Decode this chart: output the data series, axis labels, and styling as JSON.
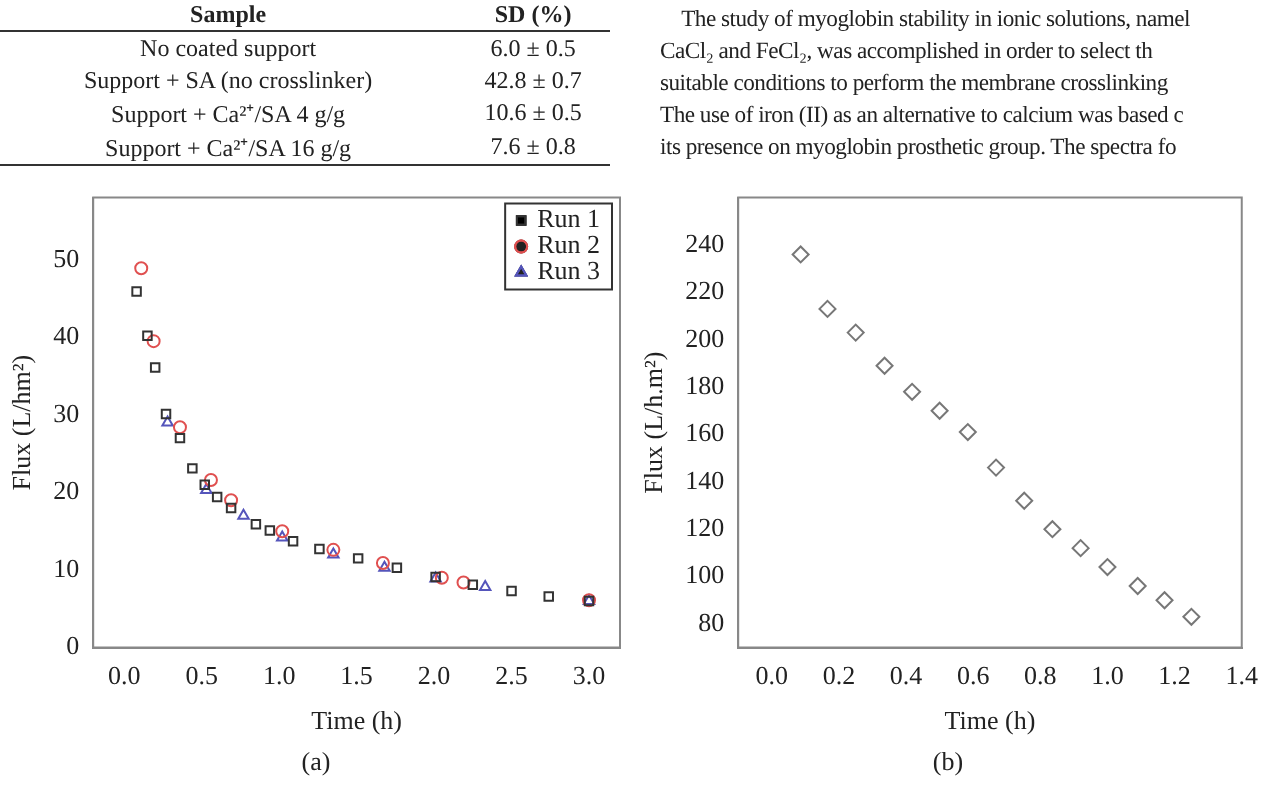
{
  "chart_data": [
    {
      "type": "other",
      "xlabel": "Sample",
      "ylabel": "SD (%)",
      "categories": [
        "No coated support",
        "Support + SA (no crosslinker)",
        "Support + Ca²⁺/SA 4 g/g",
        "Support + Ca²⁺/SA 16 g/g"
      ],
      "value_labels": [
        "6.0 ± 0.5",
        "42.8 ± 0.7",
        "10.6 ± 0.5",
        "7.6 ± 0.8"
      ],
      "annotations": [
        "The study of myoglobin stability in ionic solutions, namel",
        "CaCl₂ and FeCl₂, was accomplished in order to select th",
        "suitable conditions to perform the membrane crosslinking",
        "The use of iron (II) as an alternative to calcium was based c",
        "its presence on myoglobin prosthetic group. The spectra fo"
      ]
    },
    {
      "type": "scatter",
      "xlabel": "Time (h)",
      "ylabel": "Flux (L/hm²)",
      "annotations": [
        "(a)"
      ],
      "xlim": [
        -0.2,
        3.2
      ],
      "xticks": [
        {
          "value": 0,
          "label": "0.0"
        },
        {
          "value": 0.5,
          "label": "0.5"
        },
        {
          "value": 1,
          "label": "1.0"
        },
        {
          "value": 1.5,
          "label": "1.5"
        },
        {
          "value": 2,
          "label": "2.0"
        },
        {
          "value": 2.5,
          "label": "2.5"
        },
        {
          "value": 3,
          "label": "3.0"
        }
      ],
      "ylim": [
        0,
        58
      ],
      "yticks": [
        0,
        10,
        20,
        30,
        40,
        50
      ],
      "grid": false,
      "legend": "top right",
      "series": [
        {
          "name": "Run 1",
          "color": "#333333",
          "marker": "square",
          "x": [
            0.08,
            0.15,
            0.2,
            0.27,
            0.36,
            0.44,
            0.52,
            0.6,
            0.69,
            0.85,
            0.94,
            1.09,
            1.26,
            1.51,
            1.76,
            2.01,
            2.25,
            2.5,
            2.74,
            3.0
          ],
          "values": [
            45.9,
            40.2,
            36.1,
            30.1,
            27.0,
            23.1,
            21.0,
            19.4,
            18.0,
            15.9,
            15.1,
            13.7,
            12.7,
            11.5,
            10.3,
            9.1,
            8.1,
            7.3,
            6.6,
            6.0
          ]
        },
        {
          "name": "Run 2",
          "color": "#e05050",
          "marker": "circle",
          "x": [
            0.11,
            0.19,
            0.36,
            0.56,
            0.69,
            1.02,
            1.35,
            1.67,
            2.05,
            2.19,
            3.0
          ],
          "values": [
            48.9,
            39.5,
            28.4,
            21.6,
            19.0,
            15.0,
            12.6,
            10.9,
            9.0,
            8.4,
            6.1
          ]
        },
        {
          "name": "Run 3",
          "color": "#5555bb",
          "marker": "triangle",
          "x": [
            0.28,
            0.53,
            0.77,
            1.02,
            1.35,
            1.68,
            2.01,
            2.33,
            3.0
          ],
          "values": [
            29.0,
            20.3,
            17.0,
            14.2,
            12.0,
            10.3,
            8.9,
            7.8,
            6.0
          ]
        }
      ]
    },
    {
      "type": "scatter",
      "xlabel": "Time (h)",
      "ylabel": "Flux (L/h.m²)",
      "annotations": [
        "(b)"
      ],
      "xlim": [
        -0.1,
        1.4
      ],
      "xticks": [
        {
          "value": 0,
          "label": "0.0"
        },
        {
          "value": 0.2,
          "label": "0.2"
        },
        {
          "value": 0.4,
          "label": "0.4"
        },
        {
          "value": 0.6,
          "label": "0.6"
        },
        {
          "value": 0.8,
          "label": "0.8"
        },
        {
          "value": 1,
          "label": "1.0"
        },
        {
          "value": 1.2,
          "label": "1.2"
        },
        {
          "value": 1.4,
          "label": "1.4"
        }
      ],
      "ylim": [
        70,
        260
      ],
      "yticks": [
        80,
        100,
        120,
        140,
        160,
        180,
        200,
        220,
        240
      ],
      "grid": false,
      "marker": "diamond",
      "series": [
        {
          "color": "#777777",
          "x": [
            0.086,
            0.166,
            0.25,
            0.336,
            0.418,
            0.5,
            0.584,
            0.668,
            0.752,
            0.836,
            0.92,
            1.0,
            1.09,
            1.17,
            1.25
          ],
          "values": [
            236,
            213,
            203,
            189,
            178,
            170,
            161,
            146,
            132,
            120,
            112,
            104,
            96,
            90,
            83
          ]
        }
      ]
    }
  ]
}
